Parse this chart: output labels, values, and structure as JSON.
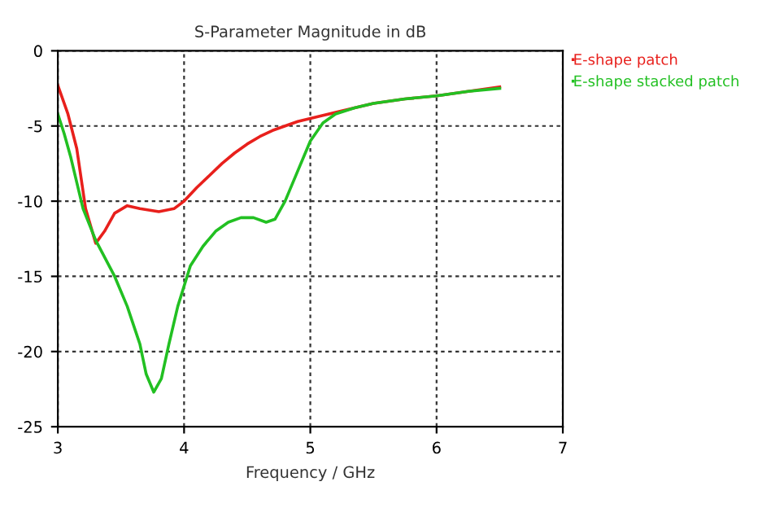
{
  "chart_data": {
    "type": "line",
    "title": "S-Parameter Magnitude in dB",
    "xlabel": "Frequency / GHz",
    "xlim": [
      3,
      7
    ],
    "xticks": [
      3,
      4,
      5,
      6,
      7
    ],
    "ylim": [
      -25,
      0
    ],
    "yticks": [
      -25,
      -20,
      -15,
      -10,
      -5,
      0
    ],
    "grid": true,
    "legend": "top right",
    "line_style": "solid",
    "marker": "none",
    "series": [
      {
        "name": "E-shape patch",
        "color": "#e8201c",
        "x": [
          3.0,
          3.08,
          3.15,
          3.22,
          3.3,
          3.37,
          3.45,
          3.55,
          3.65,
          3.8,
          3.92,
          4.0,
          4.1,
          4.2,
          4.3,
          4.4,
          4.5,
          4.6,
          4.7,
          4.8,
          4.9,
          5.0,
          5.1,
          5.2,
          5.35,
          5.5,
          5.75,
          6.0,
          6.25,
          6.5
        ],
        "values": [
          -2.3,
          -4.2,
          -6.5,
          -10.5,
          -12.8,
          -12.0,
          -10.8,
          -10.3,
          -10.5,
          -10.7,
          -10.5,
          -10.0,
          -9.1,
          -8.3,
          -7.5,
          -6.8,
          -6.2,
          -5.7,
          -5.3,
          -5.0,
          -4.7,
          -4.5,
          -4.3,
          -4.1,
          -3.8,
          -3.5,
          -3.2,
          -3.0,
          -2.7,
          -2.4
        ]
      },
      {
        "name": "E-shape stacked patch",
        "color": "#22c022",
        "x": [
          3.0,
          3.05,
          3.1,
          3.2,
          3.3,
          3.45,
          3.55,
          3.65,
          3.7,
          3.76,
          3.82,
          3.88,
          3.95,
          4.05,
          4.15,
          4.25,
          4.35,
          4.45,
          4.55,
          4.65,
          4.72,
          4.8,
          4.9,
          5.0,
          5.1,
          5.2,
          5.35,
          5.5,
          5.75,
          6.0,
          6.25,
          6.5
        ],
        "values": [
          -4.2,
          -5.5,
          -7.0,
          -10.5,
          -12.6,
          -15.0,
          -17.0,
          -19.5,
          -21.5,
          -22.7,
          -21.8,
          -19.5,
          -17.0,
          -14.3,
          -13.0,
          -12.0,
          -11.4,
          -11.1,
          -11.1,
          -11.4,
          -11.2,
          -10.0,
          -8.0,
          -6.0,
          -4.8,
          -4.2,
          -3.8,
          -3.5,
          -3.2,
          -3.0,
          -2.7,
          -2.5
        ]
      }
    ]
  }
}
